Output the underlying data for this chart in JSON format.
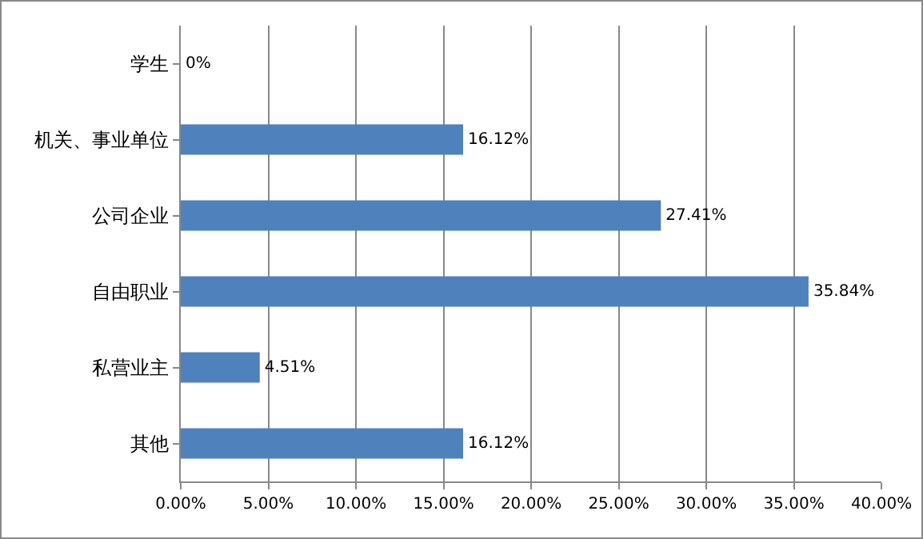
{
  "chart_data": {
    "type": "bar",
    "orientation": "horizontal",
    "categories": [
      "学生",
      "机关、事业单位",
      "公司企业",
      "自由职业",
      "私营业主",
      "其他"
    ],
    "values": [
      0,
      16.12,
      27.41,
      35.84,
      4.51,
      16.12
    ],
    "value_labels": [
      "0%",
      "16.12%",
      "27.41%",
      "35.84%",
      "4.51%",
      "16.12%"
    ],
    "color": "#4f81bd",
    "xlim": [
      0,
      40
    ],
    "xticks": [
      {
        "value": 0,
        "label": "0.00%"
      },
      {
        "value": 5,
        "label": "5.00%"
      },
      {
        "value": 10,
        "label": "10.00%"
      },
      {
        "value": 15,
        "label": "15.00%"
      },
      {
        "value": 20,
        "label": "20.00%"
      },
      {
        "value": 25,
        "label": "25.00%"
      },
      {
        "value": 30,
        "label": "30.00%"
      },
      {
        "value": 35,
        "label": "35.00%"
      },
      {
        "value": 40,
        "label": "40.00%"
      }
    ],
    "grid": "x"
  }
}
